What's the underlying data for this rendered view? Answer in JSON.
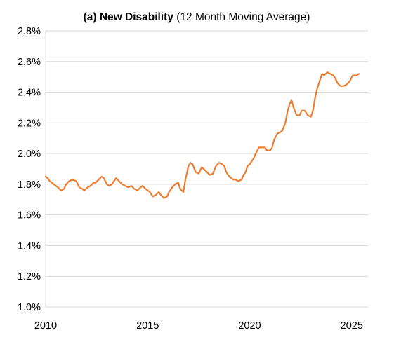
{
  "chart_data": {
    "type": "line",
    "title_bold": "(a) New Disability",
    "title_rest": " (12 Month Moving Average)",
    "xlabel": "",
    "ylabel": "",
    "xlim": [
      2010,
      2025.8
    ],
    "ylim": [
      1.0,
      2.8
    ],
    "x_ticks": [
      2010,
      2015,
      2020,
      2025
    ],
    "x_tick_labels": [
      "2010",
      "2015",
      "2020",
      "2025"
    ],
    "y_ticks": [
      1.0,
      1.2,
      1.4,
      1.6,
      1.8,
      2.0,
      2.2,
      2.4,
      2.6,
      2.8
    ],
    "y_tick_labels": [
      "1.0%",
      "1.2%",
      "1.4%",
      "1.6%",
      "1.8%",
      "2.0%",
      "2.2%",
      "2.4%",
      "2.6%",
      "2.8%"
    ],
    "grid": true,
    "legend": "none",
    "colors": {
      "series": "#ED7D31",
      "grid": "#d9d9d9",
      "text": "#000000"
    },
    "series": [
      {
        "x": [
          2010.0,
          2010.1,
          2010.2,
          2010.4,
          2010.6,
          2010.75,
          2010.9,
          2011.0,
          2011.15,
          2011.3,
          2011.5,
          2011.65,
          2011.8,
          2011.9,
          2012.05,
          2012.2,
          2012.35,
          2012.45,
          2012.6,
          2012.75,
          2012.85,
          2013.0,
          2013.1,
          2013.25,
          2013.45,
          2013.6,
          2013.75,
          2013.9,
          2014.05,
          2014.2,
          2014.35,
          2014.5,
          2014.65,
          2014.75,
          2014.9,
          2015.1,
          2015.25,
          2015.4,
          2015.55,
          2015.65,
          2015.8,
          2015.95,
          2016.05,
          2016.2,
          2016.35,
          2016.5,
          2016.6,
          2016.75,
          2016.85,
          2017.0,
          2017.1,
          2017.2,
          2017.35,
          2017.5,
          2017.65,
          2017.75,
          2017.9,
          2018.05,
          2018.2,
          2018.35,
          2018.5,
          2018.65,
          2018.75,
          2018.85,
          2019.0,
          2019.1,
          2019.2,
          2019.3,
          2019.45,
          2019.6,
          2019.7,
          2019.8,
          2019.9,
          2020.0,
          2020.1,
          2020.2,
          2020.3,
          2020.45,
          2020.6,
          2020.75,
          2020.85,
          2021.0,
          2021.1,
          2021.2,
          2021.35,
          2021.5,
          2021.6,
          2021.75,
          2021.85,
          2021.95,
          2022.05,
          2022.15,
          2022.3,
          2022.45,
          2022.55,
          2022.7,
          2022.85,
          2023.0,
          2023.1,
          2023.2,
          2023.3,
          2023.45,
          2023.55,
          2023.65,
          2023.8,
          2023.95,
          2024.1,
          2024.2,
          2024.3,
          2024.45,
          2024.6,
          2024.75,
          2024.9,
          2025.05,
          2025.15,
          2025.25,
          2025.35
        ],
        "y": [
          1.85,
          1.84,
          1.82,
          1.8,
          1.78,
          1.76,
          1.77,
          1.8,
          1.82,
          1.83,
          1.82,
          1.78,
          1.77,
          1.76,
          1.78,
          1.79,
          1.81,
          1.81,
          1.83,
          1.85,
          1.84,
          1.8,
          1.79,
          1.8,
          1.84,
          1.82,
          1.8,
          1.79,
          1.78,
          1.79,
          1.77,
          1.76,
          1.78,
          1.79,
          1.77,
          1.75,
          1.72,
          1.73,
          1.75,
          1.73,
          1.71,
          1.72,
          1.75,
          1.78,
          1.8,
          1.81,
          1.77,
          1.75,
          1.83,
          1.92,
          1.94,
          1.93,
          1.88,
          1.87,
          1.91,
          1.9,
          1.88,
          1.86,
          1.87,
          1.92,
          1.94,
          1.93,
          1.92,
          1.88,
          1.85,
          1.84,
          1.83,
          1.83,
          1.82,
          1.83,
          1.86,
          1.88,
          1.92,
          1.93,
          1.95,
          1.97,
          2.0,
          2.04,
          2.04,
          2.04,
          2.02,
          2.02,
          2.04,
          2.09,
          2.13,
          2.14,
          2.15,
          2.2,
          2.27,
          2.32,
          2.35,
          2.3,
          2.25,
          2.25,
          2.28,
          2.28,
          2.25,
          2.24,
          2.28,
          2.36,
          2.42,
          2.48,
          2.52,
          2.51,
          2.53,
          2.52,
          2.51,
          2.49,
          2.46,
          2.44,
          2.44,
          2.45,
          2.47,
          2.51,
          2.51,
          2.51,
          2.52
        ]
      }
    ]
  }
}
